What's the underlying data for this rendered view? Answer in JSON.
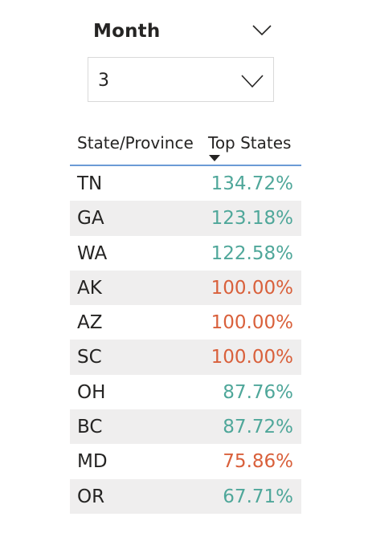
{
  "slicer": {
    "title": "Month",
    "selected_value": "3",
    "header_icon": "chevron-down-icon",
    "dropdown_icon": "chevron-down-icon"
  },
  "table": {
    "columns": [
      "State/Province",
      "Top States"
    ],
    "sort": {
      "column": "Top States",
      "direction": "descending"
    },
    "colors": {
      "positive": "#4fa79a",
      "negative": "#d9603b",
      "header_underline": "#6b9bd6",
      "alt_row": "#efeeee"
    },
    "rows": [
      {
        "state": "TN",
        "value": "134.72%",
        "color": "#4fa79a"
      },
      {
        "state": "GA",
        "value": "123.18%",
        "color": "#4fa79a"
      },
      {
        "state": "WA",
        "value": "122.58%",
        "color": "#4fa79a"
      },
      {
        "state": "AK",
        "value": "100.00%",
        "color": "#d9603b"
      },
      {
        "state": "AZ",
        "value": "100.00%",
        "color": "#d9603b"
      },
      {
        "state": "SC",
        "value": "100.00%",
        "color": "#d9603b"
      },
      {
        "state": "OH",
        "value": "87.76%",
        "color": "#4fa79a"
      },
      {
        "state": "BC",
        "value": "87.72%",
        "color": "#4fa79a"
      },
      {
        "state": "MD",
        "value": "75.86%",
        "color": "#d9603b"
      },
      {
        "state": "OR",
        "value": "67.71%",
        "color": "#4fa79a"
      }
    ]
  }
}
